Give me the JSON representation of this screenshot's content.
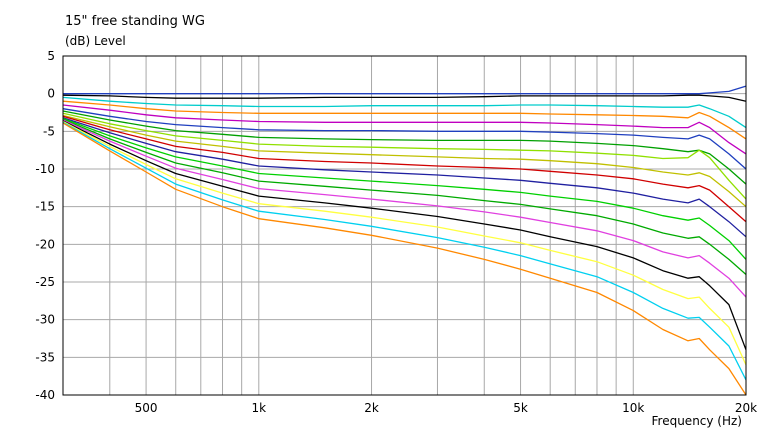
{
  "chart_data": {
    "type": "line",
    "title": "15\" free standing WG",
    "ylabel": "(dB)  Level",
    "xlabel": "Frequency  (Hz)",
    "x_scale": "log",
    "xlim": [
      300,
      20000
    ],
    "ylim": [
      -40,
      5
    ],
    "grid": true,
    "y_ticks": [
      5,
      0,
      -5,
      -10,
      -15,
      -20,
      -25,
      -30,
      -35,
      -40
    ],
    "x_tick_labels": [
      {
        "value": 500,
        "label": "500"
      },
      {
        "value": 1000,
        "label": "1k"
      },
      {
        "value": 2000,
        "label": "2k"
      },
      {
        "value": 5000,
        "label": "5k"
      },
      {
        "value": 10000,
        "label": "10k"
      },
      {
        "value": 20000,
        "label": "20k"
      }
    ],
    "x_grid": [
      400,
      500,
      600,
      700,
      800,
      900,
      1000,
      2000,
      3000,
      4000,
      5000,
      6000,
      7000,
      8000,
      9000,
      10000,
      20000
    ],
    "x": [
      300,
      400,
      500,
      600,
      800,
      1000,
      1500,
      2000,
      3000,
      4000,
      5000,
      6000,
      8000,
      10000,
      12000,
      14000,
      15000,
      16000,
      18000,
      20000
    ],
    "series": [
      {
        "color": "#1f3fbf",
        "values": [
          0,
          0,
          0,
          0,
          0,
          0,
          0,
          0,
          0,
          0,
          0,
          0,
          0,
          0,
          0,
          0,
          0,
          0.1,
          0.3,
          1
        ]
      },
      {
        "color": "#000000",
        "values": [
          -0.2,
          -0.3,
          -0.5,
          -0.6,
          -0.6,
          -0.6,
          -0.5,
          -0.5,
          -0.5,
          -0.4,
          -0.3,
          -0.3,
          -0.3,
          -0.3,
          -0.3,
          -0.2,
          -0.2,
          -0.3,
          -0.5,
          -1
        ]
      },
      {
        "color": "#00cccc",
        "values": [
          -0.5,
          -1,
          -1.3,
          -1.5,
          -1.6,
          -1.7,
          -1.7,
          -1.6,
          -1.6,
          -1.6,
          -1.5,
          -1.5,
          -1.6,
          -1.7,
          -1.8,
          -1.8,
          -1.5,
          -2,
          -3,
          -4.5
        ]
      },
      {
        "color": "#ff8800",
        "values": [
          -1,
          -1.5,
          -2,
          -2.3,
          -2.5,
          -2.6,
          -2.6,
          -2.6,
          -2.6,
          -2.6,
          -2.6,
          -2.7,
          -2.8,
          -2.9,
          -3,
          -3.2,
          -2.5,
          -3,
          -4.5,
          -6
        ]
      },
      {
        "color": "#c000c0",
        "values": [
          -1.5,
          -2.2,
          -2.8,
          -3.2,
          -3.5,
          -3.7,
          -3.8,
          -3.8,
          -3.8,
          -3.8,
          -3.8,
          -3.9,
          -4.1,
          -4.3,
          -4.5,
          -4.5,
          -3.8,
          -4.5,
          -6.5,
          -8
        ]
      },
      {
        "color": "#1f3fbf",
        "values": [
          -2,
          -3,
          -3.7,
          -4.1,
          -4.5,
          -4.8,
          -4.9,
          -4.9,
          -5,
          -5,
          -5,
          -5.1,
          -5.3,
          -5.5,
          -5.8,
          -6,
          -5.5,
          -6,
          -8,
          -10
        ]
      },
      {
        "color": "#00a000",
        "values": [
          -2.3,
          -3.5,
          -4.3,
          -4.9,
          -5.4,
          -5.8,
          -6,
          -6.1,
          -6.2,
          -6.2,
          -6.2,
          -6.3,
          -6.6,
          -6.9,
          -7.3,
          -7.7,
          -7.5,
          -8,
          -10,
          -12
        ]
      },
      {
        "color": "#90e000",
        "values": [
          -2.6,
          -4,
          -4.9,
          -5.6,
          -6.2,
          -6.7,
          -7,
          -7.1,
          -7.3,
          -7.4,
          -7.5,
          -7.6,
          -7.9,
          -8.2,
          -8.6,
          -8.5,
          -7.5,
          -8.5,
          -11.5,
          -14
        ]
      },
      {
        "color": "#c0c000",
        "values": [
          -2.9,
          -4.4,
          -5.5,
          -6.3,
          -7,
          -7.6,
          -7.9,
          -8.1,
          -8.4,
          -8.6,
          -8.7,
          -8.9,
          -9.3,
          -9.8,
          -10.4,
          -10.8,
          -10.5,
          -11,
          -13,
          -15
        ]
      },
      {
        "color": "#d00000",
        "values": [
          -3,
          -4.8,
          -6,
          -7,
          -7.8,
          -8.6,
          -9,
          -9.2,
          -9.6,
          -9.8,
          -10,
          -10.3,
          -10.8,
          -11.3,
          -12,
          -12.5,
          -12.2,
          -12.8,
          -15,
          -17
        ]
      },
      {
        "color": "#2020a0",
        "values": [
          -3.2,
          -5.2,
          -6.6,
          -7.7,
          -8.7,
          -9.6,
          -10.1,
          -10.4,
          -10.8,
          -11.2,
          -11.5,
          -11.9,
          -12.5,
          -13.2,
          -14,
          -14.5,
          -14,
          -15,
          -17,
          -19
        ]
      },
      {
        "color": "#00d000",
        "values": [
          -3.3,
          -5.6,
          -7.2,
          -8.4,
          -9.6,
          -10.6,
          -11.2,
          -11.6,
          -12.2,
          -12.7,
          -13.1,
          -13.6,
          -14.3,
          -15.2,
          -16.2,
          -16.8,
          -16.5,
          -17.5,
          -19.5,
          -22
        ]
      },
      {
        "color": "#00aa00",
        "values": [
          -3.4,
          -6,
          -7.8,
          -9.2,
          -10.5,
          -11.6,
          -12.3,
          -12.8,
          -13.5,
          -14.2,
          -14.7,
          -15.3,
          -16.2,
          -17.3,
          -18.5,
          -19.2,
          -19,
          -20,
          -22,
          -24
        ]
      },
      {
        "color": "#e040e0",
        "values": [
          -3.5,
          -6.3,
          -8.3,
          -9.9,
          -11.4,
          -12.6,
          -13.4,
          -14,
          -14.9,
          -15.7,
          -16.4,
          -17.1,
          -18.2,
          -19.5,
          -21,
          -21.8,
          -21.5,
          -22.5,
          -24.5,
          -27
        ]
      },
      {
        "color": "#000000",
        "values": [
          -3.6,
          -6.7,
          -8.9,
          -10.6,
          -12.3,
          -13.6,
          -14.5,
          -15.2,
          -16.3,
          -17.3,
          -18.1,
          -19,
          -20.3,
          -21.8,
          -23.5,
          -24.5,
          -24.3,
          -25.5,
          -28,
          -34
        ]
      },
      {
        "color": "#ffff40",
        "values": [
          -3.7,
          -7,
          -9.4,
          -11.3,
          -13.2,
          -14.6,
          -15.6,
          -16.4,
          -17.7,
          -18.9,
          -19.8,
          -20.8,
          -22.3,
          -24.1,
          -26,
          -27.2,
          -27,
          -28.5,
          -31,
          -36
        ]
      },
      {
        "color": "#00d0f0",
        "values": [
          -3.8,
          -7.3,
          -9.9,
          -12,
          -14.1,
          -15.6,
          -16.7,
          -17.6,
          -19.1,
          -20.4,
          -21.5,
          -22.6,
          -24.3,
          -26.4,
          -28.5,
          -29.8,
          -29.7,
          -31,
          -33.5,
          -38
        ]
      },
      {
        "color": "#ff8800",
        "values": [
          -3.9,
          -7.6,
          -10.4,
          -12.7,
          -15,
          -16.6,
          -17.8,
          -18.8,
          -20.5,
          -22,
          -23.3,
          -24.5,
          -26.4,
          -28.8,
          -31.3,
          -32.8,
          -32.5,
          -34,
          -36.5,
          -40
        ]
      }
    ]
  }
}
